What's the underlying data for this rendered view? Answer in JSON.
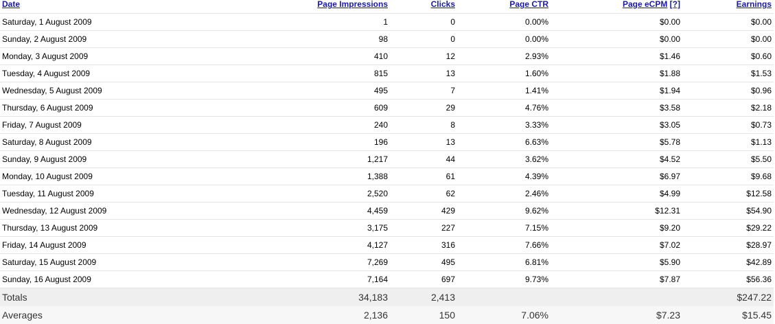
{
  "headers": {
    "date": "Date",
    "impressions": "Page Impressions",
    "clicks": "Clicks",
    "ctr": "Page CTR",
    "ecpm": "Page eCPM",
    "ecpm_help": "[?]",
    "earnings": "Earnings"
  },
  "rows": [
    {
      "date": "Saturday, 1 August 2009",
      "impressions": "1",
      "clicks": "0",
      "ctr": "0.00%",
      "ecpm": "$0.00",
      "earnings": "$0.00"
    },
    {
      "date": "Sunday, 2 August 2009",
      "impressions": "98",
      "clicks": "0",
      "ctr": "0.00%",
      "ecpm": "$0.00",
      "earnings": "$0.00"
    },
    {
      "date": "Monday, 3 August 2009",
      "impressions": "410",
      "clicks": "12",
      "ctr": "2.93%",
      "ecpm": "$1.46",
      "earnings": "$0.60"
    },
    {
      "date": "Tuesday, 4 August 2009",
      "impressions": "815",
      "clicks": "13",
      "ctr": "1.60%",
      "ecpm": "$1.88",
      "earnings": "$1.53"
    },
    {
      "date": "Wednesday, 5 August 2009",
      "impressions": "495",
      "clicks": "7",
      "ctr": "1.41%",
      "ecpm": "$1.94",
      "earnings": "$0.96"
    },
    {
      "date": "Thursday, 6 August 2009",
      "impressions": "609",
      "clicks": "29",
      "ctr": "4.76%",
      "ecpm": "$3.58",
      "earnings": "$2.18"
    },
    {
      "date": "Friday, 7 August 2009",
      "impressions": "240",
      "clicks": "8",
      "ctr": "3.33%",
      "ecpm": "$3.05",
      "earnings": "$0.73"
    },
    {
      "date": "Saturday, 8 August 2009",
      "impressions": "196",
      "clicks": "13",
      "ctr": "6.63%",
      "ecpm": "$5.78",
      "earnings": "$1.13"
    },
    {
      "date": "Sunday, 9 August 2009",
      "impressions": "1,217",
      "clicks": "44",
      "ctr": "3.62%",
      "ecpm": "$4.52",
      "earnings": "$5.50"
    },
    {
      "date": "Monday, 10 August 2009",
      "impressions": "1,388",
      "clicks": "61",
      "ctr": "4.39%",
      "ecpm": "$6.97",
      "earnings": "$9.68"
    },
    {
      "date": "Tuesday, 11 August 2009",
      "impressions": "2,520",
      "clicks": "62",
      "ctr": "2.46%",
      "ecpm": "$4.99",
      "earnings": "$12.58"
    },
    {
      "date": "Wednesday, 12 August 2009",
      "impressions": "4,459",
      "clicks": "429",
      "ctr": "9.62%",
      "ecpm": "$12.31",
      "earnings": "$54.90"
    },
    {
      "date": "Thursday, 13 August 2009",
      "impressions": "3,175",
      "clicks": "227",
      "ctr": "7.15%",
      "ecpm": "$9.20",
      "earnings": "$29.22"
    },
    {
      "date": "Friday, 14 August 2009",
      "impressions": "4,127",
      "clicks": "316",
      "ctr": "7.66%",
      "ecpm": "$7.02",
      "earnings": "$28.97"
    },
    {
      "date": "Saturday, 15 August 2009",
      "impressions": "7,269",
      "clicks": "495",
      "ctr": "6.81%",
      "ecpm": "$5.90",
      "earnings": "$42.89"
    },
    {
      "date": "Sunday, 16 August 2009",
      "impressions": "7,164",
      "clicks": "697",
      "ctr": "9.73%",
      "ecpm": "$7.87",
      "earnings": "$56.36"
    }
  ],
  "totals": {
    "label": "Totals",
    "impressions": "34,183",
    "clicks": "2,413",
    "ctr": "",
    "ecpm": "",
    "earnings": "$247.22"
  },
  "averages": {
    "label": "Averages",
    "impressions": "2,136",
    "clicks": "150",
    "ctr": "7.06%",
    "ecpm": "$7.23",
    "earnings": "$15.45"
  },
  "colors": {
    "link": "#1a1aa6",
    "row_border": "#e4e4e4",
    "totals_bg": "#efefef",
    "averages_bg": "#f7f7f7"
  }
}
